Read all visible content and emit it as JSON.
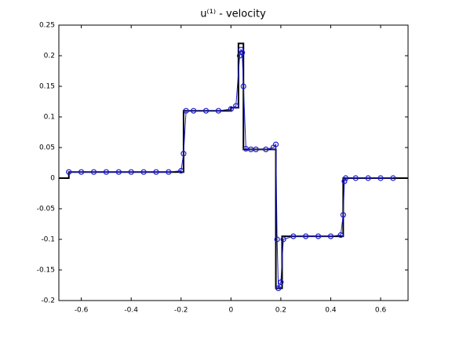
{
  "chart_data": {
    "type": "line",
    "title": "u⁽¹⁾ - velocity",
    "xlim": [
      -0.69,
      0.71
    ],
    "xticks": [
      -0.6,
      -0.4,
      -0.2,
      0,
      0.2,
      0.4,
      0.6
    ],
    "ylim": [
      -0.2,
      0.25
    ],
    "yticks": [
      -0.2,
      -0.15,
      -0.1,
      -0.05,
      0,
      0.05,
      0.1,
      0.15,
      0.2,
      0.25
    ],
    "grid": false,
    "series": [
      {
        "color": "#000000",
        "marker": "none",
        "x": [
          -0.69,
          -0.65,
          -0.65,
          -0.19,
          -0.19,
          0.0,
          0.0,
          0.03,
          0.03,
          0.05,
          0.05,
          0.18,
          0.18,
          0.205,
          0.205,
          0.45,
          0.45,
          0.71
        ],
        "values": [
          0,
          0,
          0.01,
          0.01,
          0.11,
          0.11,
          0.115,
          0.115,
          0.22,
          0.22,
          0.047,
          0.047,
          -0.18,
          -0.18,
          -0.095,
          -0.095,
          0,
          0
        ]
      },
      {
        "color": "#1a1acc",
        "marker": "o",
        "x": [
          -0.65,
          -0.6,
          -0.55,
          -0.5,
          -0.45,
          -0.4,
          -0.35,
          -0.3,
          -0.25,
          -0.2,
          -0.19,
          -0.18,
          -0.15,
          -0.1,
          -0.05,
          0,
          0.02,
          0.035,
          0.04,
          0.045,
          0.05,
          0.06,
          0.08,
          0.1,
          0.14,
          0.17,
          0.18,
          0.185,
          0.19,
          0.2,
          0.21,
          0.25,
          0.3,
          0.35,
          0.4,
          0.44,
          0.45,
          0.455,
          0.46,
          0.5,
          0.55,
          0.6,
          0.65
        ],
        "values": [
          0.01,
          0.01,
          0.01,
          0.01,
          0.01,
          0.01,
          0.01,
          0.01,
          0.01,
          0.012,
          0.04,
          0.11,
          0.11,
          0.11,
          0.11,
          0.113,
          0.118,
          0.2,
          0.21,
          0.205,
          0.15,
          0.048,
          0.047,
          0.047,
          0.047,
          0.05,
          0.055,
          -0.1,
          -0.18,
          -0.17,
          -0.1,
          -0.095,
          -0.095,
          -0.095,
          -0.095,
          -0.093,
          -0.06,
          -0.005,
          0,
          0,
          0,
          0,
          0
        ]
      }
    ]
  }
}
